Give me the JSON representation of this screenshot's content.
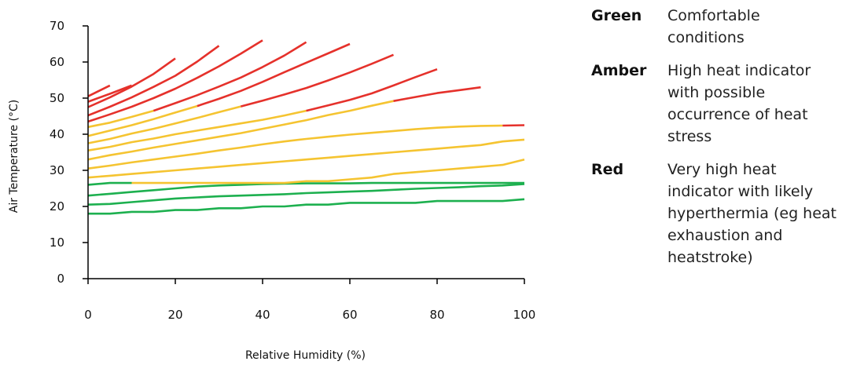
{
  "chart_data": {
    "type": "line",
    "xlabel": "Relative Humidity (%)",
    "ylabel": "Air Temperature (°C)",
    "xlim": [
      0,
      100
    ],
    "ylim": [
      0,
      70
    ],
    "xticks": [
      "0",
      "20",
      "40",
      "60",
      "80",
      "100"
    ],
    "yticks": [
      "0",
      "10",
      "20",
      "30",
      "40",
      "50",
      "60",
      "70"
    ],
    "grid": false,
    "legend_position": "right",
    "colors": {
      "green": "#1db04f",
      "amber": "#f5c431",
      "red": "#e5312b"
    },
    "series": [
      {
        "x": [
          0,
          5,
          10,
          15,
          20,
          25,
          30,
          35,
          40,
          45,
          50,
          55,
          60,
          65,
          70,
          75,
          80,
          85,
          90,
          95,
          100
        ],
        "y": [
          18,
          18,
          18.5,
          18.5,
          19,
          19,
          19.5,
          19.5,
          20,
          20,
          20.5,
          20.5,
          21,
          21,
          21,
          21,
          21.5,
          21.5,
          21.5,
          21.5,
          22
        ],
        "bands": [
          {
            "from": 0,
            "to": 100,
            "level": "green"
          }
        ]
      },
      {
        "x": [
          0,
          5,
          10,
          15,
          20,
          25,
          30,
          35,
          40,
          45,
          50,
          55,
          60,
          65,
          70,
          75,
          80,
          85,
          90,
          95,
          100
        ],
        "y": [
          20.5,
          20.7,
          21.2,
          21.7,
          22.2,
          22.5,
          22.8,
          23,
          23.2,
          23.4,
          23.7,
          23.9,
          24.1,
          24.3,
          24.6,
          24.9,
          25.1,
          25.3,
          25.6,
          25.8,
          26.2
        ],
        "bands": [
          {
            "from": 0,
            "to": 100,
            "level": "green"
          }
        ]
      },
      {
        "x": [
          0,
          5,
          10,
          15,
          20,
          25,
          30,
          35,
          40,
          45,
          50,
          55,
          60,
          65,
          70,
          75,
          80,
          85,
          90,
          95,
          100
        ],
        "y": [
          23,
          23.5,
          24,
          24.5,
          25,
          25.5,
          25.8,
          26,
          26.2,
          26.3,
          26.4,
          26.4,
          26.4,
          26.5,
          26.5,
          26.5,
          26.5,
          26.5,
          26.5,
          26.5,
          26.5
        ],
        "bands": [
          {
            "from": 0,
            "to": 100,
            "level": "green"
          }
        ]
      },
      {
        "x": [
          0,
          5,
          10,
          15,
          20,
          25,
          30,
          35,
          40,
          45,
          50,
          55,
          60,
          65,
          70,
          75,
          80,
          85,
          90,
          95,
          100
        ],
        "y": [
          26,
          26.5,
          26.5,
          26.5,
          26.5,
          26.5,
          26.5,
          26.5,
          26.5,
          26.5,
          27,
          27,
          27.5,
          28,
          29,
          29.5,
          30,
          30.5,
          31,
          31.5,
          33
        ],
        "bands": [
          {
            "from": 0,
            "to": 10,
            "level": "green"
          },
          {
            "from": 10,
            "to": 100,
            "level": "amber"
          }
        ]
      },
      {
        "x": [
          0,
          5,
          10,
          15,
          20,
          25,
          30,
          35,
          40,
          45,
          50,
          55,
          60,
          65,
          70,
          75,
          80,
          85,
          90,
          95,
          100
        ],
        "y": [
          28,
          28.5,
          29,
          29.5,
          30,
          30.5,
          31,
          31.5,
          32,
          32.5,
          33,
          33.5,
          34,
          34.5,
          35,
          35.5,
          36,
          36.5,
          37,
          38,
          38.5
        ],
        "bands": [
          {
            "from": 0,
            "to": 100,
            "level": "amber"
          }
        ]
      },
      {
        "x": [
          0,
          5,
          10,
          15,
          20,
          25,
          30,
          35,
          40,
          45,
          50,
          55,
          60,
          65,
          70,
          75,
          80,
          85,
          90,
          95,
          100
        ],
        "y": [
          30.5,
          31.3,
          32.2,
          33,
          33.8,
          34.6,
          35.5,
          36.3,
          37.2,
          38,
          38.7,
          39.3,
          39.9,
          40.4,
          40.9,
          41.4,
          41.8,
          42.1,
          42.3,
          42.4,
          42.5
        ],
        "bands": [
          {
            "from": 0,
            "to": 95,
            "level": "amber"
          },
          {
            "from": 95,
            "to": 100,
            "level": "red"
          }
        ]
      },
      {
        "x": [
          0,
          5,
          10,
          15,
          20,
          25,
          30,
          35,
          40,
          45,
          50,
          55,
          60,
          65,
          70,
          75,
          80,
          85,
          90
        ],
        "y": [
          33,
          34.2,
          35.2,
          36.3,
          37.3,
          38.3,
          39.3,
          40.3,
          41.5,
          42.7,
          43.9,
          45.3,
          46.5,
          47.9,
          49.2,
          50.3,
          51.4,
          52.2,
          53
        ],
        "bands": [
          {
            "from": 0,
            "to": 70,
            "level": "amber"
          },
          {
            "from": 70,
            "to": 90,
            "level": "red"
          }
        ]
      },
      {
        "x": [
          0,
          5,
          10,
          15,
          20,
          25,
          30,
          35,
          40,
          45,
          50,
          55,
          60,
          65,
          70,
          75,
          80
        ],
        "y": [
          35.5,
          36.5,
          37.8,
          38.8,
          40,
          41,
          42,
          43,
          44,
          45.2,
          46.5,
          48,
          49.5,
          51.3,
          53.5,
          55.8,
          58
        ],
        "bands": [
          {
            "from": 0,
            "to": 50,
            "level": "amber"
          },
          {
            "from": 50,
            "to": 80,
            "level": "red"
          }
        ]
      },
      {
        "x": [
          0,
          5,
          10,
          15,
          20,
          25,
          30,
          35,
          40,
          45,
          50,
          55,
          60,
          65,
          70
        ],
        "y": [
          37.5,
          38.7,
          40.2,
          41.5,
          43,
          44.5,
          46.1,
          47.7,
          49.3,
          51,
          52.8,
          54.9,
          57.1,
          59.5,
          62
        ],
        "bands": [
          {
            "from": 0,
            "to": 35,
            "level": "amber"
          },
          {
            "from": 35,
            "to": 70,
            "level": "red"
          }
        ]
      },
      {
        "x": [
          0,
          5,
          10,
          15,
          20,
          25,
          30,
          35,
          40,
          45,
          50,
          55,
          60
        ],
        "y": [
          39.5,
          41,
          42.5,
          44.2,
          46,
          47.8,
          49.8,
          52,
          54.5,
          57.2,
          59.8,
          62.4,
          65
        ],
        "bands": [
          {
            "from": 0,
            "to": 25,
            "level": "amber"
          },
          {
            "from": 25,
            "to": 60,
            "level": "red"
          }
        ]
      },
      {
        "x": [
          0,
          5,
          10,
          15,
          20,
          25,
          30,
          35,
          40,
          45,
          50
        ],
        "y": [
          42,
          43.2,
          44.8,
          46.5,
          48.6,
          50.8,
          53.2,
          55.7,
          58.6,
          61.8,
          65.5
        ],
        "bands": [
          {
            "from": 0,
            "to": 15,
            "level": "amber"
          },
          {
            "from": 15,
            "to": 50,
            "level": "red"
          }
        ]
      },
      {
        "x": [
          0,
          5,
          10,
          15,
          20,
          25,
          30,
          35,
          40
        ],
        "y": [
          43.5,
          45.5,
          47.6,
          50,
          52.6,
          55.6,
          58.8,
          62.3,
          66
        ],
        "bands": [
          {
            "from": 0,
            "to": 40,
            "level": "red"
          }
        ]
      },
      {
        "x": [
          0,
          5,
          10,
          15,
          20,
          25,
          30
        ],
        "y": [
          45.2,
          47.6,
          50.2,
          53.1,
          56.2,
          60.1,
          64.5
        ],
        "bands": [
          {
            "from": 0,
            "to": 30,
            "level": "red"
          }
        ]
      },
      {
        "x": [
          0,
          5,
          10,
          15,
          20
        ],
        "y": [
          47.5,
          50.2,
          53.2,
          56.7,
          61
        ],
        "bands": [
          {
            "from": 0,
            "to": 20,
            "level": "red"
          }
        ]
      },
      {
        "x": [
          0,
          5,
          10
        ],
        "y": [
          49,
          51.2,
          53.5
        ],
        "bands": [
          {
            "from": 0,
            "to": 10,
            "level": "red"
          }
        ]
      },
      {
        "x": [
          0,
          5
        ],
        "y": [
          50.5,
          53.5
        ],
        "bands": [
          {
            "from": 0,
            "to": 5,
            "level": "red"
          }
        ]
      }
    ]
  },
  "legend": [
    {
      "key": "Green",
      "description": "Comfortable conditions"
    },
    {
      "key": "Amber",
      "description": "High heat indicator with possible occurrence of heat stress"
    },
    {
      "key": "Red",
      "description": "Very high heat indicator with likely hyperthermia (eg heat exhaustion and heatstroke)"
    }
  ]
}
